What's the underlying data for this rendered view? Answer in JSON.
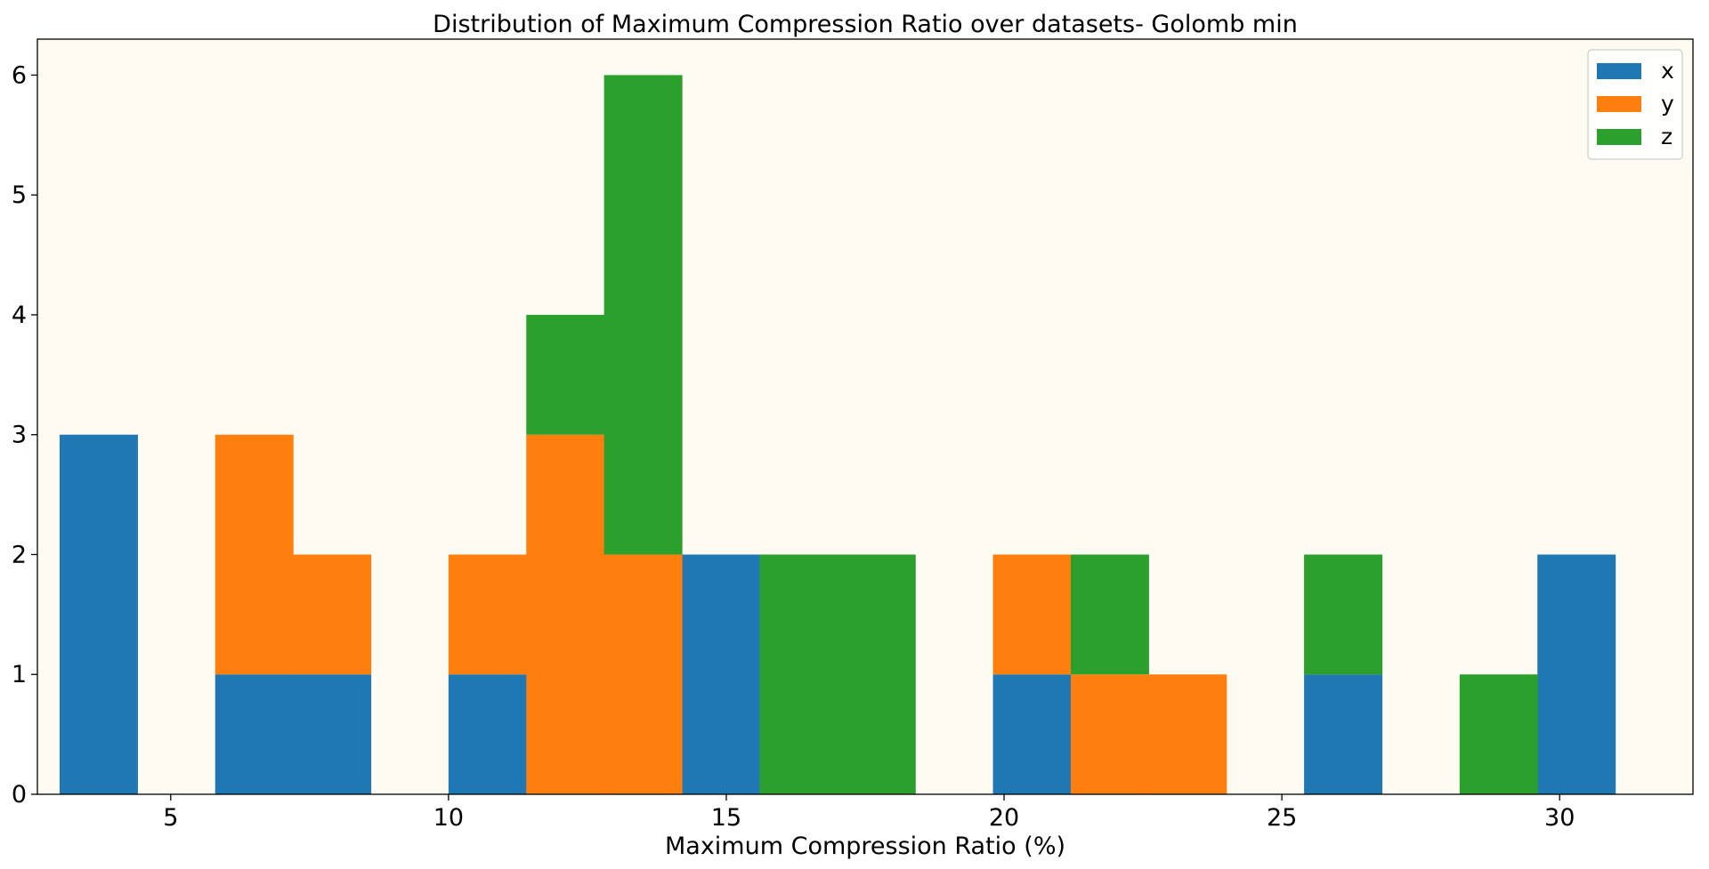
{
  "chart_data": {
    "type": "bar",
    "title": "Distribution of Maximum Compression Ratio over datasets- Golomb min",
    "xlabel": "Maximum Compression Ratio (%)",
    "ylabel": "",
    "xlim": [
      2.6,
      32.4
    ],
    "ylim": [
      0,
      6.3
    ],
    "xticks": [
      5,
      10,
      15,
      20,
      25,
      30
    ],
    "yticks": [
      0,
      1,
      2,
      3,
      4,
      5,
      6
    ],
    "grid": false,
    "legend_position": "top-right",
    "plot_background": "#fefbf3",
    "bin_edges": [
      3.0,
      4.4,
      5.8,
      7.2,
      8.6,
      10.0,
      11.4,
      12.8,
      14.2,
      15.6,
      17.0,
      18.4,
      19.8,
      21.2,
      22.6,
      24.0,
      25.4,
      26.8,
      28.2,
      29.6,
      31.0
    ],
    "series": [
      {
        "name": "x",
        "color": "#1f77b4",
        "values": [
          3,
          0,
          1,
          1,
          0,
          1,
          0,
          0,
          2,
          0,
          0,
          0,
          1,
          0,
          0,
          0,
          1,
          0,
          0,
          2
        ]
      },
      {
        "name": "y",
        "color": "#ff7f0e",
        "values": [
          0,
          0,
          2,
          1,
          0,
          1,
          3,
          2,
          0,
          0,
          0,
          0,
          1,
          1,
          1,
          0,
          0,
          0,
          0,
          0
        ]
      },
      {
        "name": "z",
        "color": "#2ca02c",
        "values": [
          0,
          0,
          0,
          0,
          0,
          0,
          1,
          4,
          0,
          2,
          2,
          0,
          0,
          1,
          0,
          0,
          1,
          0,
          1,
          0
        ]
      }
    ]
  }
}
